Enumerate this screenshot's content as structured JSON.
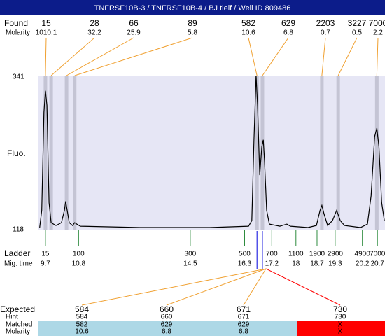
{
  "title": "TNFRSF10B-3 / TNFRSF10B-4 / BJ tielf / Well ID 809486",
  "found": {
    "label": "Found",
    "molarity_label": "Molarity",
    "sizes": [
      15,
      28,
      66,
      89,
      582,
      629,
      2203,
      3227,
      7000
    ],
    "molarities": [
      "1010.1",
      "32.2",
      "25.9",
      "5.8",
      "10.6",
      "6.8",
      "0.7",
      "0.5",
      "2.2"
    ],
    "times": [
      9.7,
      9.89,
      10.4,
      10.67,
      16.71,
      16.89,
      18.86,
      19.4,
      20.68
    ]
  },
  "fluo": {
    "label": "Fluo.",
    "ylim": [
      118,
      341
    ],
    "yticks": [
      118,
      341
    ]
  },
  "trace": {
    "xlim": [
      9.47,
      20.95
    ],
    "x": [
      9.51,
      9.58,
      9.65,
      9.7,
      9.75,
      9.82,
      9.89,
      10.05,
      10.23,
      10.33,
      10.37,
      10.42,
      10.49,
      10.6,
      10.67,
      10.74,
      10.86,
      12.83,
      15.15,
      16.43,
      16.54,
      16.61,
      16.68,
      16.73,
      16.8,
      16.87,
      16.92,
      16.96,
      17.03,
      17.12,
      17.47,
      17.7,
      17.82,
      18.4,
      18.68,
      18.8,
      18.86,
      18.93,
      19.05,
      19.21,
      19.35,
      19.47,
      19.61,
      20.14,
      20.37,
      20.49,
      20.61,
      20.68,
      20.75,
      20.84,
      20.93
    ],
    "y": [
      121,
      146,
      288,
      319,
      298,
      157,
      128,
      124,
      128,
      146,
      159,
      146,
      128,
      124,
      128,
      126,
      123,
      121,
      121,
      123,
      131,
      248,
      341,
      298,
      197,
      238,
      248,
      217,
      146,
      126,
      123,
      126,
      123,
      121,
      124,
      146,
      153,
      141,
      124,
      131,
      146,
      131,
      124,
      121,
      126,
      167,
      253,
      265,
      238,
      157,
      131
    ]
  },
  "ladder": {
    "label": "Ladder",
    "time_label": "Mig. time",
    "sizes": [
      15,
      100,
      300,
      500,
      700,
      1100,
      1900,
      2900,
      4900,
      7000
    ],
    "times": [
      9.7,
      10.8,
      14.5,
      16.3,
      17.2,
      18,
      18.7,
      19.3,
      20.2,
      20.7
    ]
  },
  "expected": {
    "row_labels": [
      "Expected",
      "Hint",
      "Matched",
      "Molarity"
    ],
    "columns": [
      {
        "expected": 584,
        "hint": 584,
        "matched": 582,
        "molarity": 10.6
      },
      {
        "expected": 660,
        "hint": 660,
        "matched": 629,
        "molarity": 6.8
      },
      {
        "expected": 671,
        "hint": 671,
        "matched": 629,
        "molarity": 6.8
      },
      {
        "expected": 730,
        "hint": 730,
        "matched": "X",
        "molarity": "X"
      }
    ]
  }
}
